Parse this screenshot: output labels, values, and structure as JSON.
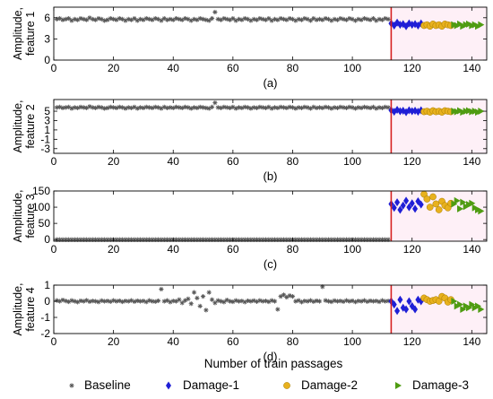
{
  "figure": {
    "xlabel": "Number of  train passages",
    "legend_placement": "bottom",
    "legend": [
      {
        "name": "Baseline",
        "marker": "asterisk",
        "color": "#555555"
      },
      {
        "name": "Damage-1",
        "marker": "diamond",
        "color": "#1f1fd6"
      },
      {
        "name": "Damage-2",
        "marker": "circle",
        "color": "#e8b11e"
      },
      {
        "name": "Damage-3",
        "marker": "triangle-right",
        "color": "#4f9c12"
      }
    ],
    "vline_color": "#d62020",
    "damage_band_color": "#fde4f0"
  },
  "chart_data": [
    {
      "type": "scatter",
      "caption": "(a)",
      "ylabel": [
        "Amplitude,",
        "feature 1"
      ],
      "xlim": [
        0,
        145
      ],
      "ylim": [
        0,
        7.5
      ],
      "xticks": [
        0,
        20,
        40,
        60,
        80,
        100,
        120,
        140
      ],
      "yticks": [
        0,
        3,
        6
      ],
      "grid": false,
      "vline_x": 113,
      "series": [
        {
          "name": "Baseline",
          "x_start": 1,
          "x_end": 112,
          "values": [
            5.8,
            5.9,
            5.7,
            5.8,
            5.9,
            5.6,
            5.8,
            5.7,
            5.9,
            5.8,
            5.7,
            6.0,
            5.8,
            5.7,
            5.9,
            5.8,
            5.6,
            5.7,
            5.9,
            5.8,
            5.7,
            5.9,
            5.8,
            5.6,
            5.8,
            5.7,
            5.9,
            5.6,
            5.8,
            5.7,
            5.9,
            5.8,
            5.7,
            5.9,
            5.8,
            5.6,
            5.9,
            5.7,
            5.8,
            5.7,
            5.9,
            5.8,
            5.7,
            5.9,
            5.8,
            5.6,
            5.8,
            5.7,
            5.9,
            5.8,
            5.7,
            5.6,
            5.9,
            6.8,
            5.8,
            5.7,
            5.9,
            5.8,
            5.7,
            5.9,
            5.6,
            5.8,
            5.7,
            5.9,
            5.8,
            5.6,
            5.8,
            5.7,
            5.9,
            5.8,
            5.7,
            5.9,
            5.6,
            5.8,
            5.7,
            5.9,
            5.8,
            5.7,
            5.9,
            5.8,
            5.6,
            5.8,
            5.7,
            5.9,
            5.8,
            5.6,
            5.9,
            5.7,
            5.8,
            5.7,
            5.9,
            5.8,
            5.6,
            5.8,
            5.7,
            5.9,
            5.8,
            5.7,
            5.9,
            5.8,
            5.6,
            5.8,
            5.7,
            5.9,
            5.8,
            5.7,
            5.9,
            5.6,
            5.8,
            5.7,
            5.9,
            5.8
          ]
        },
        {
          "name": "Damage-1",
          "x_start": 113,
          "x_end": 123,
          "values": [
            5.2,
            4.9,
            5.3,
            5.0,
            5.1,
            4.8,
            5.2,
            5.0,
            5.1,
            4.9,
            5.2
          ]
        },
        {
          "name": "Damage-2",
          "x_start": 124,
          "x_end": 133,
          "values": [
            4.9,
            5.0,
            4.8,
            5.1,
            4.9,
            5.0,
            4.8,
            5.1,
            5.0,
            4.9
          ]
        },
        {
          "name": "Damage-3",
          "x_start": 134,
          "x_end": 143,
          "values": [
            5.0,
            4.9,
            5.1,
            4.8,
            5.0,
            5.1,
            4.9,
            5.0,
            4.8,
            5.0
          ]
        }
      ]
    },
    {
      "type": "scatter",
      "caption": "(b)",
      "ylabel": [
        "Amplitude,",
        "feature 2"
      ],
      "xlim": [
        0,
        145
      ],
      "ylim": [
        -4,
        7.5
      ],
      "xticks": [
        0,
        20,
        40,
        60,
        80,
        100,
        120,
        140
      ],
      "yticks": [
        -3,
        -1,
        1,
        3,
        5
      ],
      "grid": false,
      "vline_x": 113,
      "series": [
        {
          "name": "Baseline",
          "x_start": 1,
          "x_end": 112,
          "values": [
            5.8,
            5.9,
            5.7,
            5.8,
            5.9,
            5.6,
            5.8,
            5.7,
            5.9,
            5.8,
            5.7,
            6.0,
            5.8,
            5.7,
            5.9,
            5.8,
            5.6,
            5.7,
            5.9,
            5.8,
            5.7,
            5.9,
            5.8,
            5.6,
            5.8,
            5.7,
            5.9,
            5.6,
            5.8,
            5.7,
            5.9,
            5.8,
            5.7,
            5.9,
            5.8,
            5.6,
            5.9,
            5.7,
            5.8,
            5.7,
            5.9,
            5.8,
            5.7,
            5.9,
            5.8,
            5.6,
            5.8,
            5.7,
            5.9,
            5.8,
            5.7,
            5.6,
            5.9,
            6.8,
            5.8,
            5.7,
            5.9,
            5.8,
            5.7,
            5.9,
            5.6,
            5.8,
            5.7,
            5.9,
            5.8,
            5.6,
            5.8,
            5.7,
            5.9,
            5.8,
            5.7,
            5.9,
            5.6,
            5.8,
            5.7,
            5.9,
            5.8,
            5.7,
            5.9,
            5.8,
            5.6,
            5.8,
            5.7,
            5.9,
            5.8,
            5.6,
            5.9,
            5.7,
            5.8,
            5.7,
            5.9,
            5.8,
            5.6,
            5.8,
            5.7,
            5.9,
            5.8,
            5.7,
            5.9,
            5.8,
            5.6,
            5.8,
            5.7,
            5.9,
            5.8,
            5.7,
            5.9,
            5.6,
            5.8,
            5.7,
            5.9,
            5.8
          ]
        },
        {
          "name": "Damage-1",
          "x_start": 113,
          "x_end": 123,
          "values": [
            5.2,
            4.9,
            5.3,
            5.0,
            5.1,
            4.8,
            5.2,
            5.0,
            5.1,
            4.9,
            5.2
          ]
        },
        {
          "name": "Damage-2",
          "x_start": 124,
          "x_end": 133,
          "values": [
            4.9,
            5.0,
            4.8,
            5.1,
            4.9,
            5.0,
            4.8,
            5.1,
            5.0,
            4.9
          ]
        },
        {
          "name": "Damage-3",
          "x_start": 134,
          "x_end": 143,
          "values": [
            5.0,
            4.9,
            5.1,
            4.8,
            5.0,
            5.1,
            4.9,
            5.0,
            4.8,
            5.0
          ]
        }
      ]
    },
    {
      "type": "scatter",
      "caption": "(c)",
      "ylabel": [
        "Amplitude,",
        "feature 3"
      ],
      "xlim": [
        0,
        145
      ],
      "ylim": [
        -5,
        150
      ],
      "xticks": [
        0,
        20,
        40,
        60,
        80,
        100,
        120,
        140
      ],
      "yticks": [
        0,
        50,
        100,
        150
      ],
      "grid": false,
      "vline_x": 113,
      "series": [
        {
          "name": "Baseline",
          "x_start": 1,
          "x_end": 112,
          "values": [
            0,
            0,
            0,
            0,
            0,
            0,
            0,
            0,
            0,
            0,
            0,
            0,
            0,
            0,
            0,
            0,
            0,
            0,
            0,
            0,
            0,
            0,
            0,
            0,
            0,
            0,
            0,
            0,
            0,
            0,
            0,
            0,
            0,
            0,
            0,
            0,
            0,
            0,
            0,
            0,
            0,
            0,
            0,
            0,
            0,
            0,
            0,
            0,
            0,
            0,
            0,
            0,
            0,
            0,
            0,
            0,
            0,
            0,
            0,
            0,
            0,
            0,
            0,
            0,
            0,
            0,
            0,
            0,
            0,
            0,
            0,
            0,
            0,
            0,
            0,
            0,
            0,
            0,
            0,
            0,
            0,
            0,
            0,
            0,
            0,
            0,
            0,
            0,
            0,
            0,
            0,
            0,
            0,
            0,
            0,
            0,
            0,
            0,
            0,
            0,
            0,
            0,
            0,
            0,
            0,
            0,
            0,
            0,
            0,
            0,
            0,
            0
          ]
        },
        {
          "name": "Damage-1",
          "x_start": 113,
          "x_end": 123,
          "values": [
            110,
            98,
            115,
            92,
            105,
            120,
            100,
            112,
            95,
            118,
            108
          ]
        },
        {
          "name": "Damage-2",
          "x_start": 124,
          "x_end": 133,
          "values": [
            140,
            125,
            100,
            132,
            110,
            92,
            118,
            105,
            98,
            112
          ]
        },
        {
          "name": "Damage-3",
          "x_start": 134,
          "x_end": 143,
          "values": [
            110,
            120,
            95,
            115,
            102,
            108,
            112,
            98,
            92,
            88
          ]
        }
      ]
    },
    {
      "type": "scatter",
      "caption": "(d)",
      "ylabel": [
        "Amplitude,",
        "feature 4"
      ],
      "xlim": [
        0,
        145
      ],
      "ylim": [
        -2,
        1
      ],
      "xticks": [
        0,
        20,
        40,
        60,
        80,
        100,
        120,
        140
      ],
      "yticks": [
        -2,
        -1,
        0,
        1
      ],
      "grid": false,
      "vline_x": 113,
      "series": [
        {
          "name": "Baseline",
          "x_start": 1,
          "x_end": 112,
          "values": [
            0.05,
            0.0,
            0.08,
            0.02,
            -0.03,
            0.05,
            0.0,
            -0.05,
            0.03,
            0.0,
            0.06,
            -0.02,
            0.02,
            0.0,
            -0.04,
            0.04,
            0.0,
            0.02,
            -0.02,
            0.05,
            0.0,
            0.03,
            -0.03,
            0.02,
            0.0,
            0.05,
            -0.02,
            0.03,
            0.0,
            0.02,
            -0.04,
            0.05,
            0.0,
            -0.02,
            0.03,
            0.75,
            0.0,
            0.05,
            -0.05,
            0.02,
            0.0,
            0.1,
            -0.1,
            0.05,
            0.15,
            -0.15,
            0.55,
            0.2,
            -0.3,
            0.3,
            -0.55,
            0.55,
            0.1,
            -0.1,
            0.05,
            0.0,
            -0.05,
            0.08,
            0.0,
            -0.03,
            0.05,
            0.0,
            0.02,
            -0.05,
            0.03,
            0.0,
            0.04,
            -0.02,
            0.05,
            0.0,
            0.02,
            -0.03,
            0.05,
            0.0,
            -0.5,
            0.3,
            0.4,
            0.25,
            0.35,
            0.3,
            0.0,
            0.05,
            -0.05,
            0.02,
            0.0,
            0.05,
            -0.02,
            0.03,
            0.0,
            0.9,
            0.05,
            0.0,
            -0.03,
            0.04,
            0.0,
            0.02,
            -0.02,
            0.05,
            0.0,
            0.03,
            -0.04,
            0.02,
            0.0,
            0.05,
            -0.02,
            0.03,
            0.0,
            0.02,
            -0.03,
            0.05,
            0.0,
            0.02
          ]
        },
        {
          "name": "Damage-1",
          "x_start": 113,
          "x_end": 123,
          "values": [
            0.0,
            -0.2,
            -0.6,
            0.1,
            -0.4,
            -0.5,
            0.0,
            -0.3,
            -0.5,
            0.1,
            0.0
          ]
        },
        {
          "name": "Damage-2",
          "x_start": 124,
          "x_end": 133,
          "values": [
            0.2,
            0.1,
            0.0,
            0.05,
            0.1,
            0.0,
            0.3,
            0.2,
            -0.05,
            0.1
          ]
        },
        {
          "name": "Damage-3",
          "x_start": 134,
          "x_end": 143,
          "values": [
            0.0,
            -0.3,
            -0.2,
            -0.5,
            -0.3,
            -0.4,
            -0.2,
            -0.4,
            -0.3,
            -0.5
          ]
        }
      ]
    }
  ]
}
